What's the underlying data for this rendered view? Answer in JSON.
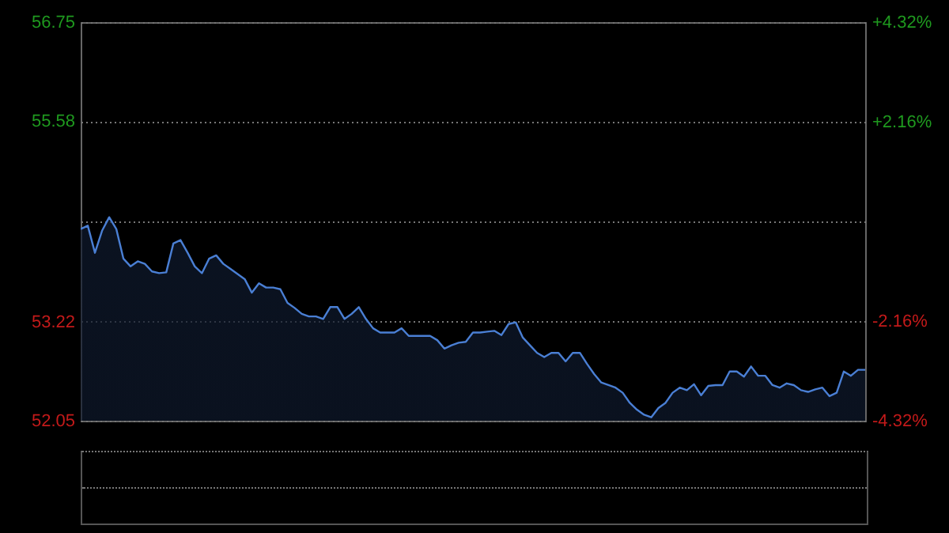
{
  "chart_data": {
    "type": "area",
    "categories": [
      null,
      null,
      null,
      null,
      null,
      null,
      null,
      null,
      null,
      null,
      null,
      null,
      null,
      null,
      null,
      null,
      null,
      null,
      null,
      null,
      null,
      null,
      null,
      null,
      null,
      null,
      null,
      null,
      null,
      null,
      null,
      null,
      null,
      null,
      null,
      null,
      null,
      null,
      null,
      null,
      null,
      null,
      null,
      null,
      null,
      null,
      null,
      null,
      null,
      null,
      null,
      null,
      null,
      null,
      null,
      null,
      null,
      null,
      null,
      null,
      null,
      null,
      null,
      null,
      null,
      null,
      null,
      null,
      null,
      null,
      null,
      null,
      null,
      null,
      null,
      null,
      null,
      null,
      null,
      null,
      null,
      null,
      null,
      null,
      null,
      null,
      null,
      null,
      null,
      null,
      null,
      null,
      null,
      null,
      null,
      null,
      null,
      null,
      null,
      null,
      null,
      null,
      null,
      null,
      null,
      null,
      null,
      null,
      null,
      null,
      null
    ],
    "series": [
      {
        "color": "#4a7fd4",
        "values": [
          54.31,
          54.35,
          54.03,
          54.29,
          54.45,
          54.31,
          53.96,
          53.87,
          53.93,
          53.9,
          53.81,
          53.79,
          53.8,
          54.14,
          54.18,
          54.03,
          53.87,
          53.79,
          53.96,
          54.0,
          53.9,
          53.84,
          53.78,
          53.72,
          53.56,
          53.67,
          53.62,
          53.62,
          53.6,
          53.44,
          53.38,
          53.31,
          53.28,
          53.28,
          53.25,
          53.39,
          53.39,
          53.25,
          53.31,
          53.39,
          53.25,
          53.14,
          53.09,
          53.09,
          53.09,
          53.14,
          53.05,
          53.05,
          53.05,
          53.05,
          53.0,
          52.9,
          52.94,
          52.97,
          52.98,
          53.09,
          53.09,
          53.1,
          53.11,
          53.06,
          53.19,
          53.21,
          53.03,
          52.94,
          52.85,
          52.8,
          52.85,
          52.85,
          52.75,
          52.85,
          52.85,
          52.72,
          52.6,
          52.5,
          52.47,
          52.44,
          52.38,
          52.26,
          52.18,
          52.12,
          52.09,
          52.2,
          52.26,
          52.38,
          52.44,
          52.41,
          52.48,
          52.35,
          52.46,
          52.47,
          52.47,
          52.63,
          52.63,
          52.57,
          52.69,
          52.58,
          52.58,
          52.47,
          52.44,
          52.49,
          52.47,
          52.41,
          52.39,
          52.42,
          52.44,
          52.34,
          52.38,
          52.63,
          52.58,
          52.65,
          52.65
        ]
      }
    ],
    "ylim": [
      52.05,
      56.75
    ],
    "yticks": [
      52.05,
      53.22,
      {
        "value": 54.4,
        "label": null
      },
      55.58,
      56.75
    ],
    "y2lim": [
      -4.32,
      4.32
    ],
    "y2ticks": [
      {
        "value": -4.32,
        "label": "-4.32%"
      },
      {
        "value": -2.16,
        "label": "-2.16%"
      },
      {
        "value": 2.16,
        "label": "+2.16%"
      },
      {
        "value": 4.32,
        "label": "+4.32%"
      }
    ],
    "tick_labels": "y",
    "grid": true
  }
}
